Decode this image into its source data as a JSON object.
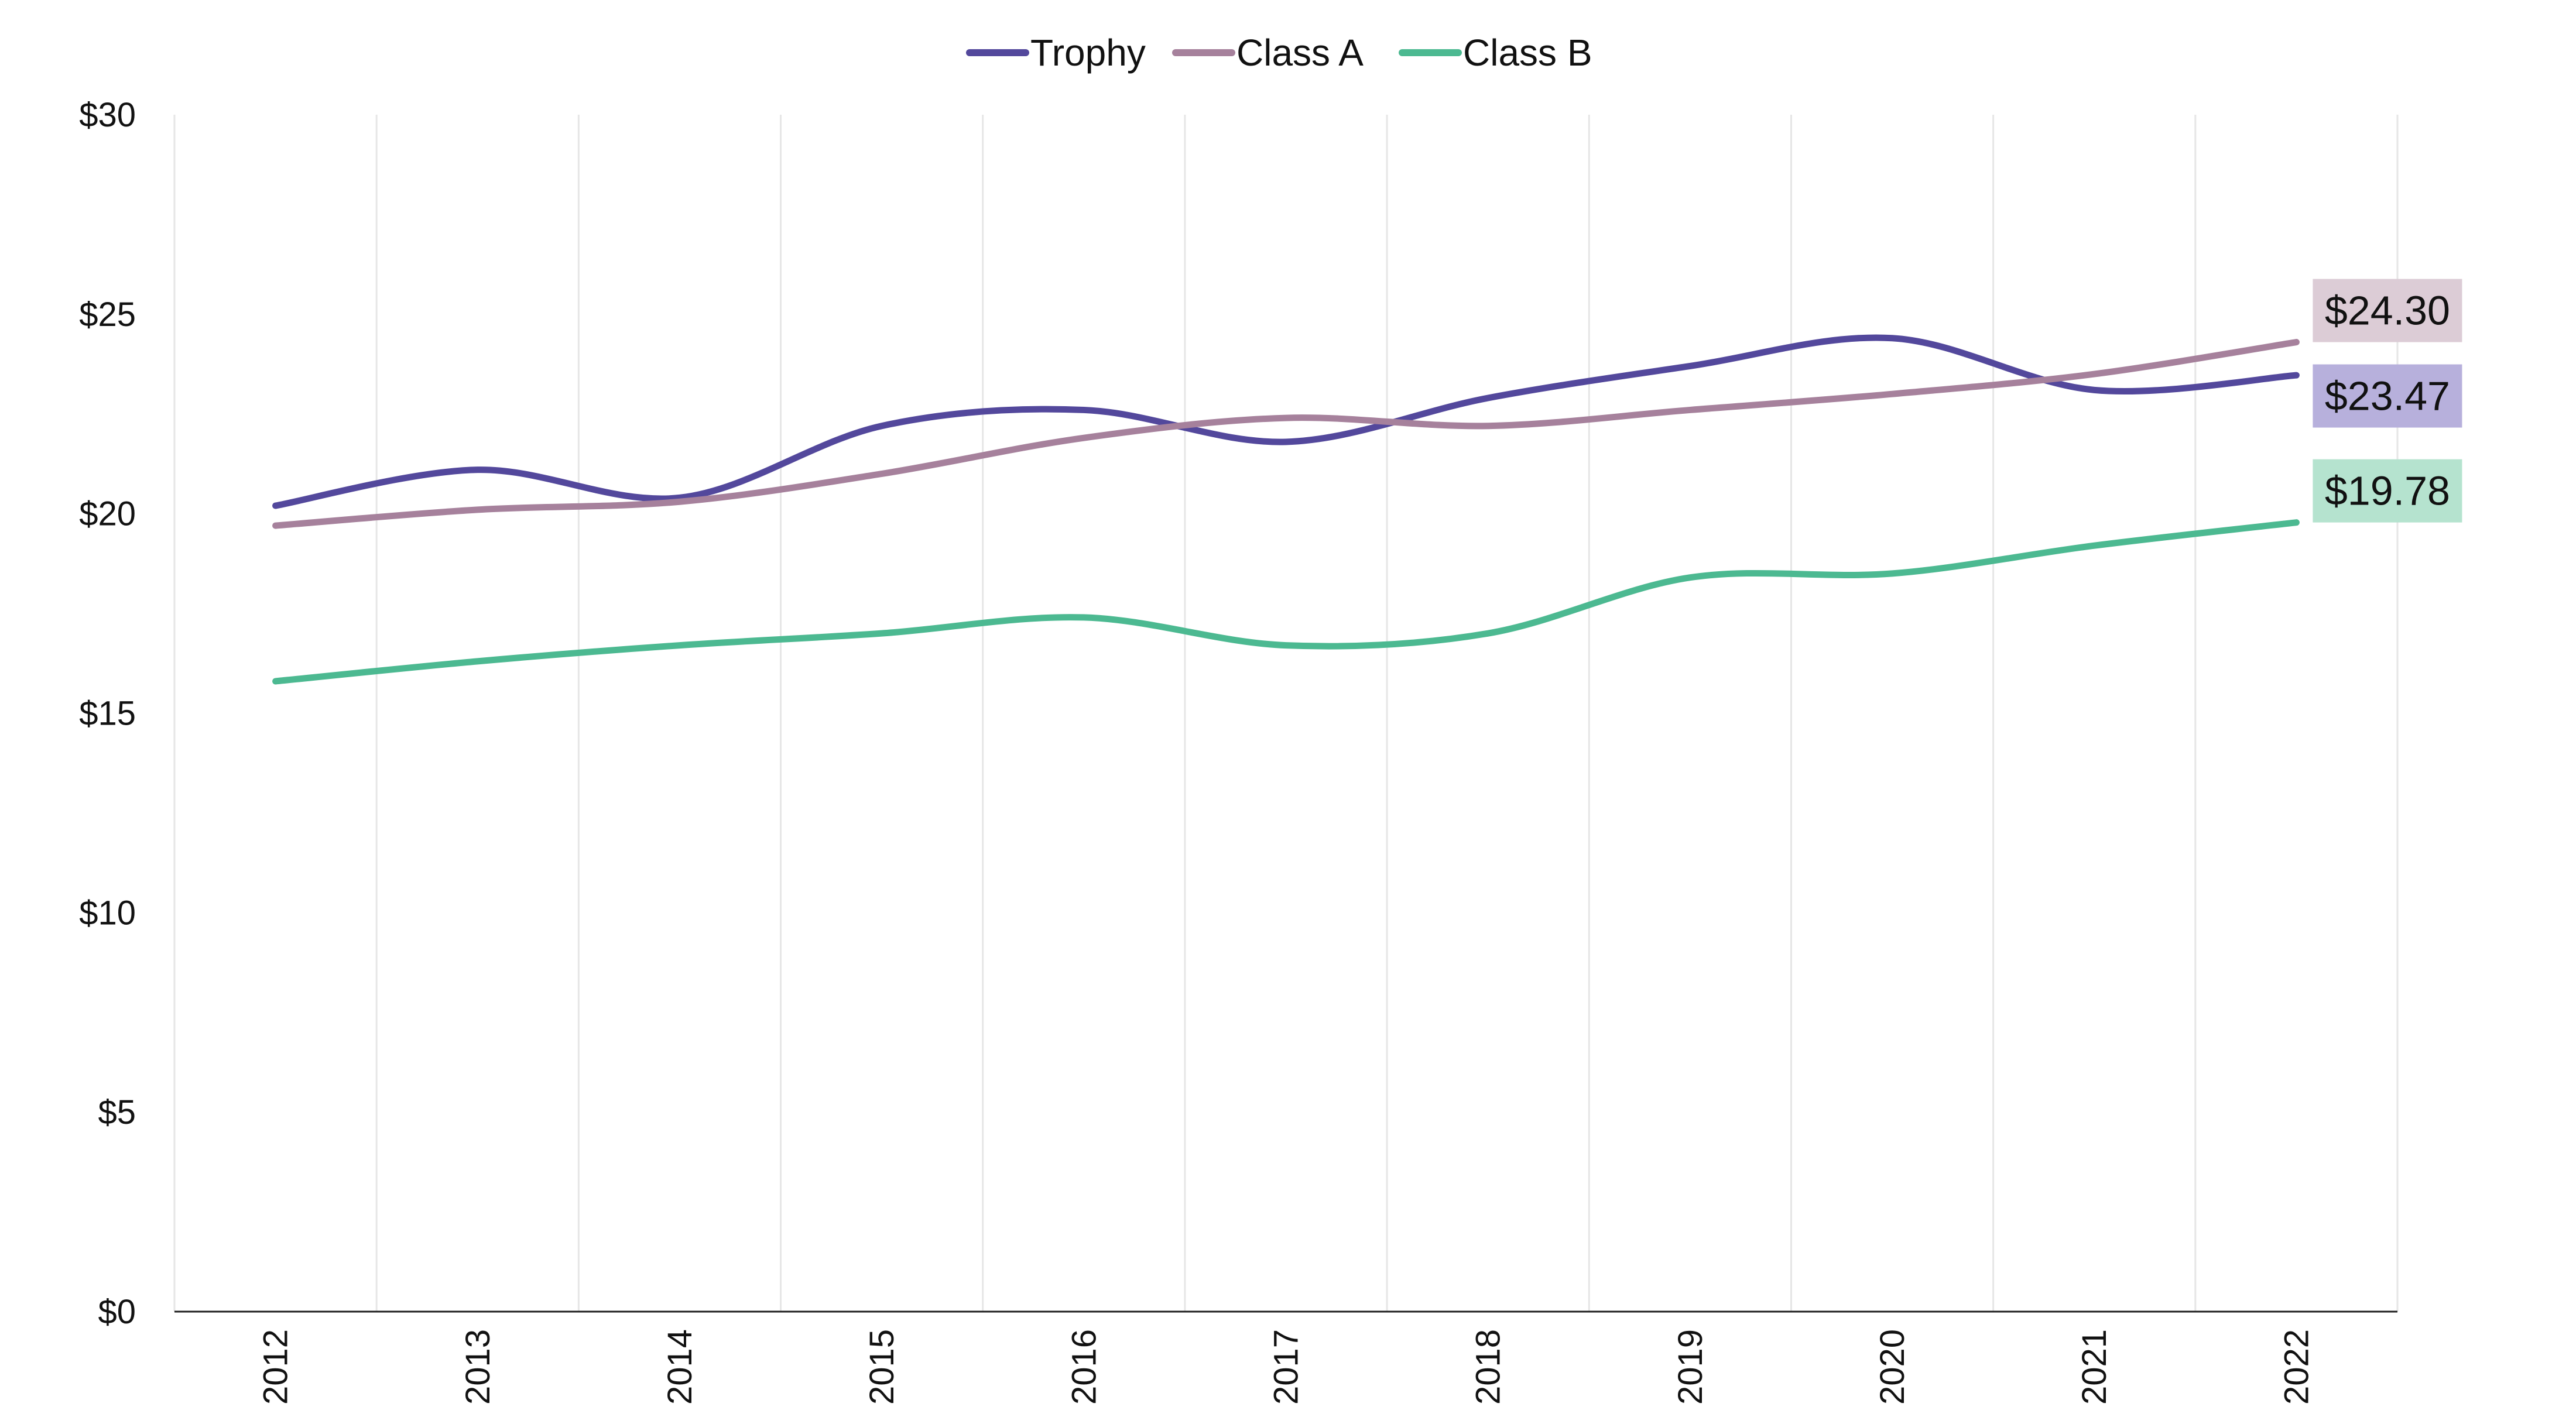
{
  "chart_data": {
    "type": "line",
    "title": "",
    "xlabel": "",
    "ylabel": "",
    "categories": [
      "2012",
      "2013",
      "2014",
      "2015",
      "2016",
      "2017",
      "2018",
      "2019",
      "2020",
      "2021",
      "2022"
    ],
    "ylim": [
      0,
      30
    ],
    "yticks": [
      0,
      5,
      10,
      15,
      20,
      25,
      30
    ],
    "ytick_labels": [
      "$0",
      "$5",
      "$10",
      "$15",
      "$20",
      "$25",
      "$30"
    ],
    "grid": {
      "vertical": true,
      "horizontal": false
    },
    "legend": {
      "position": "top-center"
    },
    "series": [
      {
        "name": "Trophy",
        "color": "#53489c",
        "label_bg": "#b7b0dc",
        "values": [
          20.2,
          21.1,
          20.4,
          22.2,
          22.6,
          21.8,
          22.9,
          23.7,
          24.4,
          23.1,
          23.47
        ],
        "end_label": "$23.47"
      },
      {
        "name": "Class A",
        "color": "#a6819c",
        "label_bg": "#dcccd6",
        "values": [
          19.7,
          20.1,
          20.3,
          21.0,
          21.9,
          22.4,
          22.2,
          22.6,
          23.0,
          23.5,
          24.3
        ],
        "end_label": "$24.30"
      },
      {
        "name": "Class B",
        "color": "#4cb991",
        "label_bg": "#b5e3cf",
        "values": [
          15.8,
          16.3,
          16.7,
          17.0,
          17.4,
          16.7,
          17.0,
          18.4,
          18.5,
          19.2,
          19.78
        ],
        "end_label": "$19.78"
      }
    ]
  }
}
